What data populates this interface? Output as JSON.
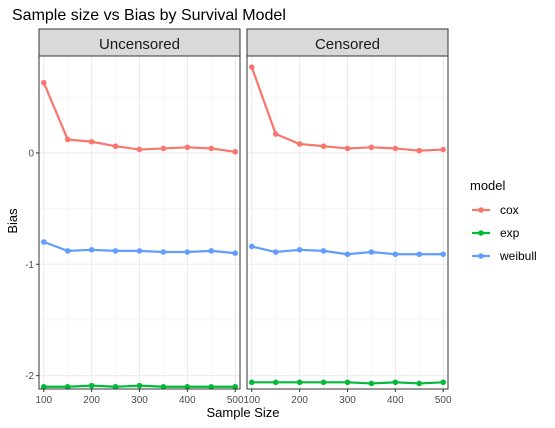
{
  "chart_data": {
    "type": "line",
    "title": "Sample size vs Bias by Survival Model",
    "xlabel": "Sample Size",
    "ylabel": "Bias",
    "x": [
      100,
      150,
      200,
      250,
      300,
      350,
      400,
      450,
      500
    ],
    "x_ticks": [
      "100",
      "200",
      "300",
      "400",
      "500"
    ],
    "y_ticks": [
      "0",
      "-1",
      "-2"
    ],
    "xlim": [
      90,
      510
    ],
    "ylim": [
      -2.12,
      0.87
    ],
    "legend": {
      "title": "model",
      "placement": "right"
    },
    "colors": {
      "cox": "#F8766D",
      "exp": "#00BA38",
      "weibull": "#619CFF"
    },
    "panels": [
      {
        "label": "Uncensored",
        "series": [
          {
            "name": "cox",
            "values": [
              0.63,
              0.12,
              0.1,
              0.06,
              0.03,
              0.04,
              0.05,
              0.04,
              0.01
            ]
          },
          {
            "name": "exp",
            "values": [
              -2.1,
              -2.1,
              -2.09,
              -2.1,
              -2.09,
              -2.1,
              -2.1,
              -2.1,
              -2.1
            ]
          },
          {
            "name": "weibull",
            "values": [
              -0.8,
              -0.88,
              -0.87,
              -0.88,
              -0.88,
              -0.89,
              -0.89,
              -0.88,
              -0.9
            ]
          }
        ]
      },
      {
        "label": "Censored",
        "series": [
          {
            "name": "cox",
            "values": [
              0.77,
              0.17,
              0.08,
              0.06,
              0.04,
              0.05,
              0.04,
              0.02,
              0.03
            ]
          },
          {
            "name": "exp",
            "values": [
              -2.06,
              -2.06,
              -2.06,
              -2.06,
              -2.06,
              -2.07,
              -2.06,
              -2.07,
              -2.06
            ]
          },
          {
            "name": "weibull",
            "values": [
              -0.84,
              -0.89,
              -0.87,
              -0.88,
              -0.91,
              -0.89,
              -0.91,
              -0.91,
              -0.91
            ]
          }
        ]
      }
    ]
  }
}
